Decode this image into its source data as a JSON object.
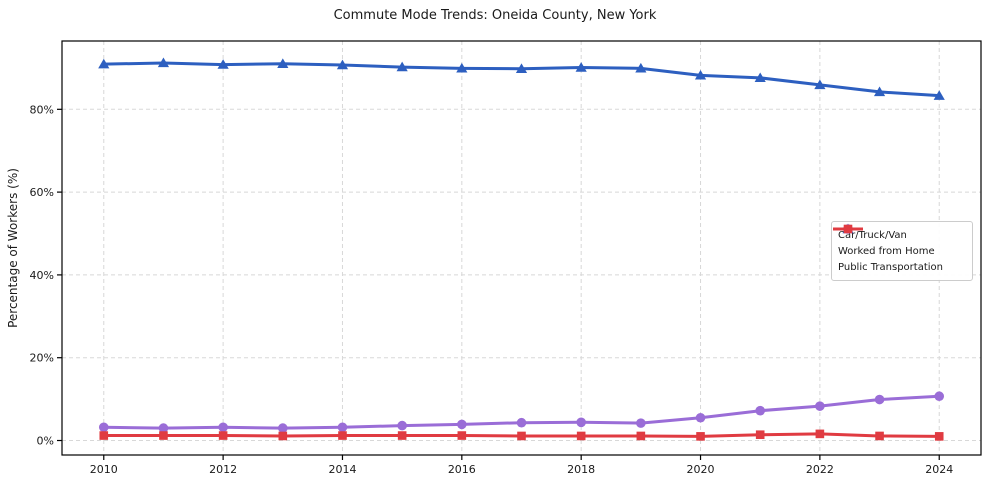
{
  "chart_data": {
    "type": "line",
    "title": "Commute Mode Trends: Oneida County, New York",
    "xlabel": "",
    "ylabel": "Percentage of Workers (%)",
    "x": [
      2010,
      2011,
      2012,
      2013,
      2014,
      2015,
      2016,
      2017,
      2018,
      2019,
      2020,
      2021,
      2022,
      2023,
      2024
    ],
    "x_tick_labels": [
      "2010",
      "2012",
      "2014",
      "2016",
      "2018",
      "2020",
      "2022",
      "2024"
    ],
    "x_ticks": [
      2010,
      2012,
      2014,
      2016,
      2018,
      2020,
      2022,
      2024
    ],
    "y_ticks": [
      0,
      20,
      40,
      60,
      80
    ],
    "y_tick_labels": [
      "0%",
      "20%",
      "40%",
      "60%",
      "80%"
    ],
    "xlim": [
      2009.3,
      2024.7
    ],
    "ylim": [
      -3.5,
      96.5
    ],
    "grid": true,
    "grid_style": "dashed",
    "legend_position": "center right",
    "series": [
      {
        "name": "Car/Truck/Van",
        "marker": "triangle",
        "color": "#2d5fc0",
        "values": [
          90.9,
          91.2,
          90.8,
          91.0,
          90.7,
          90.2,
          89.9,
          89.8,
          90.1,
          89.9,
          88.2,
          87.6,
          85.9,
          84.2,
          83.3
        ]
      },
      {
        "name": "Worked from Home",
        "marker": "circle",
        "color": "#9a6dd7",
        "values": [
          3.2,
          3.0,
          3.2,
          3.0,
          3.2,
          3.6,
          3.9,
          4.3,
          4.4,
          4.2,
          5.5,
          7.2,
          8.3,
          9.9,
          10.7
        ]
      },
      {
        "name": "Public Transportation",
        "marker": "square",
        "color": "#e03b41",
        "values": [
          1.2,
          1.2,
          1.2,
          1.1,
          1.2,
          1.2,
          1.2,
          1.1,
          1.1,
          1.1,
          1.0,
          1.4,
          1.6,
          1.1,
          1.0
        ]
      }
    ]
  },
  "colors": {
    "grid": "#d8d8d8",
    "spine": "#000000",
    "tick_text": "#1a1a1a",
    "legend_border": "#cccccc",
    "background": "#ffffff"
  }
}
